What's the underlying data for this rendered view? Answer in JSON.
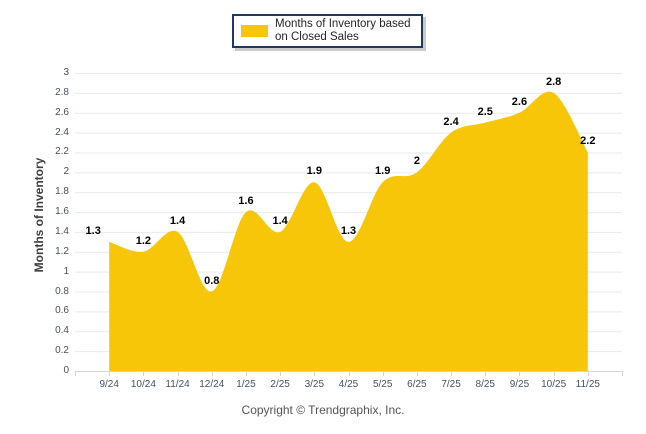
{
  "legend": {
    "lines": [
      "Months of Inventory based",
      "on Closed Sales"
    ]
  },
  "footer": {
    "copyright": "Copyright © Trendgraphix, Inc."
  },
  "chart_data": {
    "type": "area",
    "smooth": true,
    "ylabel": "Months of Inventory",
    "xlabel": "",
    "categories": [
      "9/24",
      "10/24",
      "11/24",
      "12/24",
      "1/25",
      "2/25",
      "3/25",
      "4/25",
      "5/25",
      "6/25",
      "7/25",
      "8/25",
      "9/25",
      "10/25",
      "11/25"
    ],
    "values": [
      1.3,
      1.2,
      1.4,
      0.8,
      1.6,
      1.4,
      1.9,
      1.3,
      1.9,
      2,
      2.4,
      2.5,
      2.6,
      2.8,
      2.2
    ],
    "point_labels": [
      "1.3",
      "1.2",
      "1.4",
      "0.8",
      "1.6",
      "1.4",
      "1.9",
      "1.3",
      "1.9",
      "2",
      "2.4",
      "2.5",
      "2.6",
      "2.8",
      "2.2"
    ],
    "ylim": [
      0,
      3
    ],
    "ytick_step": 0.2,
    "ytick_labels": [
      "0",
      "0.2",
      "0.4",
      "0.6",
      "0.8",
      "1",
      "1.2",
      "1.4",
      "1.6",
      "1.8",
      "2",
      "2.2",
      "2.4",
      "2.6",
      "2.8",
      "3"
    ],
    "grid": "horizontal",
    "legend_position": "top-center",
    "series_name": "Months of Inventory based on Closed Sales",
    "colors": {
      "area_fill": "#F8C608",
      "gridline": "#E9E9E9",
      "axis_line": "#D6D6D6",
      "tick_label": "#4A5160",
      "data_label": "#000000",
      "axis_title": "#404040",
      "legend_border": "#1F3864",
      "legend_text": "#262626",
      "footer_text": "#545454"
    }
  }
}
